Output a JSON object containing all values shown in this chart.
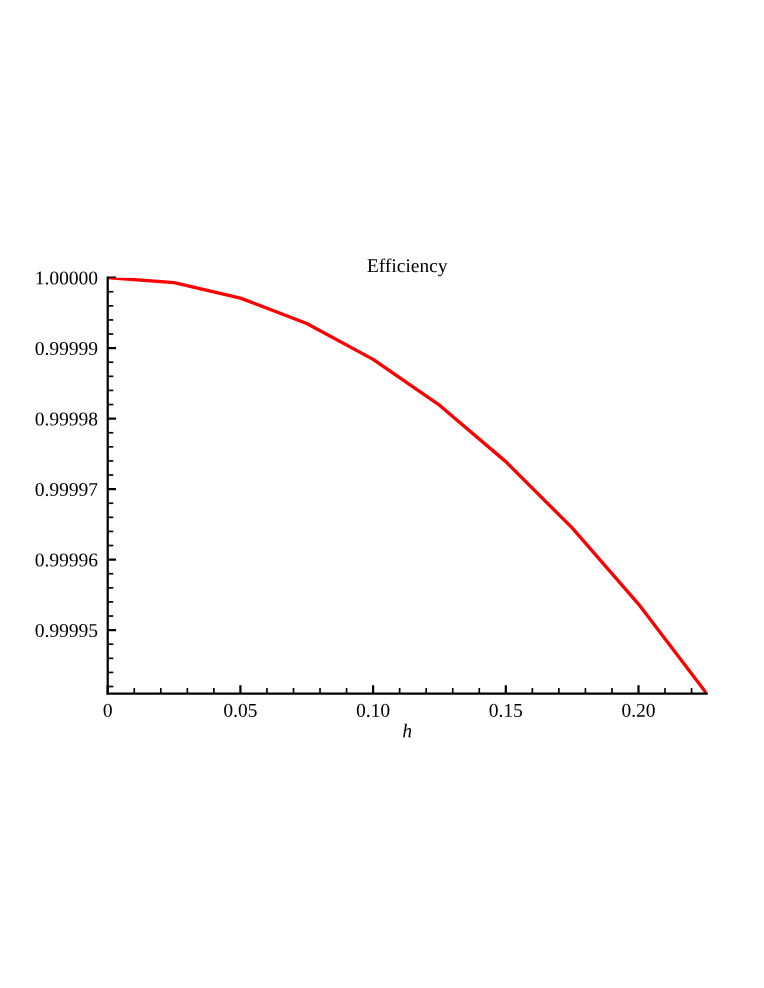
{
  "chart_data": {
    "type": "line",
    "title": "Efficiency",
    "xlabel": "h",
    "x": [
      0,
      0.025,
      0.05,
      0.075,
      0.1,
      0.125,
      0.15,
      0.175,
      0.2,
      0.2257
    ],
    "series": [
      {
        "color": "#ff0000",
        "values": [
          1.0,
          0.9999993,
          0.9999971,
          0.9999935,
          0.9999884,
          0.9999819,
          0.9999739,
          0.9999645,
          0.9999537,
          0.999941
        ]
      }
    ],
    "xlim": [
      0,
      0.2257
    ],
    "ylim": [
      0.999941,
      1.0
    ],
    "xticks": [
      0,
      0.05,
      {
        "value": 0.1,
        "label": "0.10"
      },
      0.15,
      {
        "value": 0.2,
        "label": "0.20"
      }
    ],
    "yticks": [
      {
        "value": 0.99995,
        "label": "0.99995"
      },
      {
        "value": 0.99996,
        "label": "0.99996"
      },
      {
        "value": 0.99997,
        "label": "0.99997"
      },
      {
        "value": 0.99998,
        "label": "0.99998"
      },
      {
        "value": 0.99999,
        "label": "0.99999"
      },
      {
        "value": 1.0,
        "label": "1.00000"
      }
    ],
    "grid": false,
    "legend": false,
    "marker": "none",
    "line_style": "solid"
  }
}
